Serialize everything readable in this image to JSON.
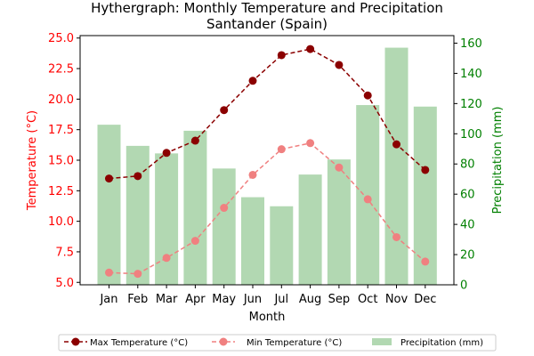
{
  "chart_data": {
    "type": "bar+line",
    "title": "Hythergraph: Monthly Temperature and Precipitation",
    "subtitle": "Santander (Spain)",
    "xlabel": "Month",
    "ylabel_left": "Temperature (°C)",
    "ylabel_right": "Precipitation (mm)",
    "categories": [
      "Jan",
      "Feb",
      "Mar",
      "Apr",
      "May",
      "Jun",
      "Jul",
      "Aug",
      "Sep",
      "Oct",
      "Nov",
      "Dec"
    ],
    "ylim_left": [
      4.8,
      25.2
    ],
    "yticks_left": [
      "5.0",
      "7.5",
      "10.0",
      "12.5",
      "15.0",
      "17.5",
      "20.0",
      "22.5",
      "25.0"
    ],
    "ylim_right": [
      0,
      165
    ],
    "yticks_right": [
      "0",
      "20",
      "40",
      "60",
      "80",
      "100",
      "120",
      "140",
      "160"
    ],
    "series": [
      {
        "name": "Max Temperature (°C)",
        "kind": "line",
        "axis": "left",
        "color": "#8b0000",
        "values": [
          13.5,
          13.7,
          15.6,
          16.6,
          19.1,
          21.5,
          23.6,
          24.1,
          22.8,
          20.3,
          16.3,
          14.2
        ]
      },
      {
        "name": "Min Temperature (°C)",
        "kind": "line",
        "axis": "left",
        "color": "#f08080",
        "values": [
          5.8,
          5.7,
          7.0,
          8.4,
          11.1,
          13.8,
          15.9,
          16.4,
          14.4,
          11.8,
          8.7,
          6.7
        ]
      },
      {
        "name": "Precipitation (mm)",
        "kind": "bar",
        "axis": "right",
        "color": "#b2d8b2",
        "values": [
          106,
          92,
          87,
          102,
          77,
          58,
          52,
          73,
          83,
          119,
          157,
          118
        ]
      }
    ],
    "legend_position": "bottom-center",
    "colors": {
      "left_axis": "#ff0000",
      "right_axis": "#008000"
    }
  }
}
